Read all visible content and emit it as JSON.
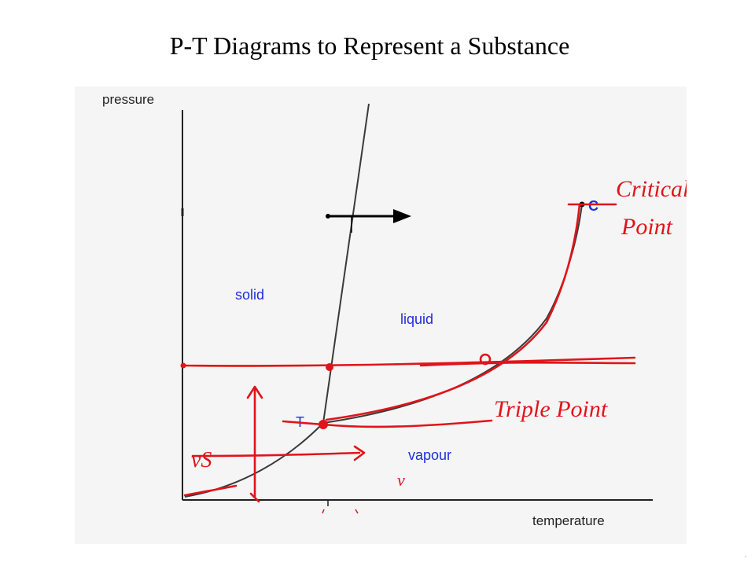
{
  "title": "P-T Diagrams to Represent a Substance",
  "diagram": {
    "axis_y_label": "pressure",
    "axis_x_label": "temperature",
    "regions": {
      "solid": "solid",
      "liquid": "liquid",
      "vapour": "vapour"
    },
    "points": {
      "triple": "T",
      "critical": "C"
    },
    "annotations": {
      "critical_point": [
        "Critical",
        "Point"
      ],
      "triple_point": "Triple Point",
      "sublimation_mark": "vS",
      "vapour_mark": "v"
    },
    "colors": {
      "curve": "#3a3a3a",
      "blue_label": "#1f2fd6",
      "annotation": "#e0141a",
      "panel_bg": "#f5f5f5"
    }
  }
}
